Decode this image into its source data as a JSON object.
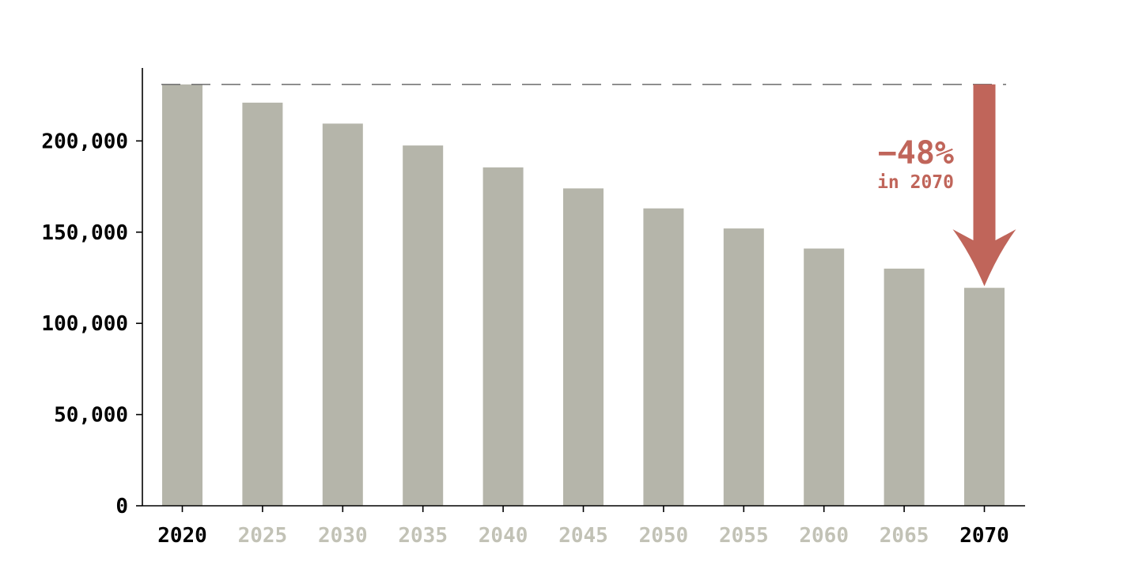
{
  "chart_data": {
    "type": "bar",
    "categories": [
      "2020",
      "2025",
      "2030",
      "2035",
      "2040",
      "2045",
      "2050",
      "2055",
      "2060",
      "2065",
      "2070"
    ],
    "values": [
      231000,
      221000,
      209500,
      197500,
      185500,
      174000,
      163000,
      152000,
      141000,
      130000,
      119500
    ],
    "highlighted_categories": [
      "2020",
      "2070"
    ],
    "ylim": [
      0,
      240000
    ],
    "yticks": [
      0,
      50000,
      100000,
      150000,
      200000
    ],
    "ytick_labels": [
      "0",
      "50,000",
      "100,000",
      "150,000",
      "200,000"
    ],
    "reference_line": {
      "value": 231000,
      "style": "dashed"
    },
    "grid": false,
    "legend": "none",
    "annotation": {
      "change_label": "−48%",
      "year_label": "in 2070",
      "from_category": "2020",
      "to_category": "2070"
    },
    "title": "",
    "xlabel": "",
    "ylabel": ""
  },
  "colors": {
    "bar": "#b5b5aa",
    "axis": "#000000",
    "reference_line": "#777777",
    "highlight_tick": "#000000",
    "muted_tick": "#c2c2b6",
    "accent": "#c0655a"
  }
}
